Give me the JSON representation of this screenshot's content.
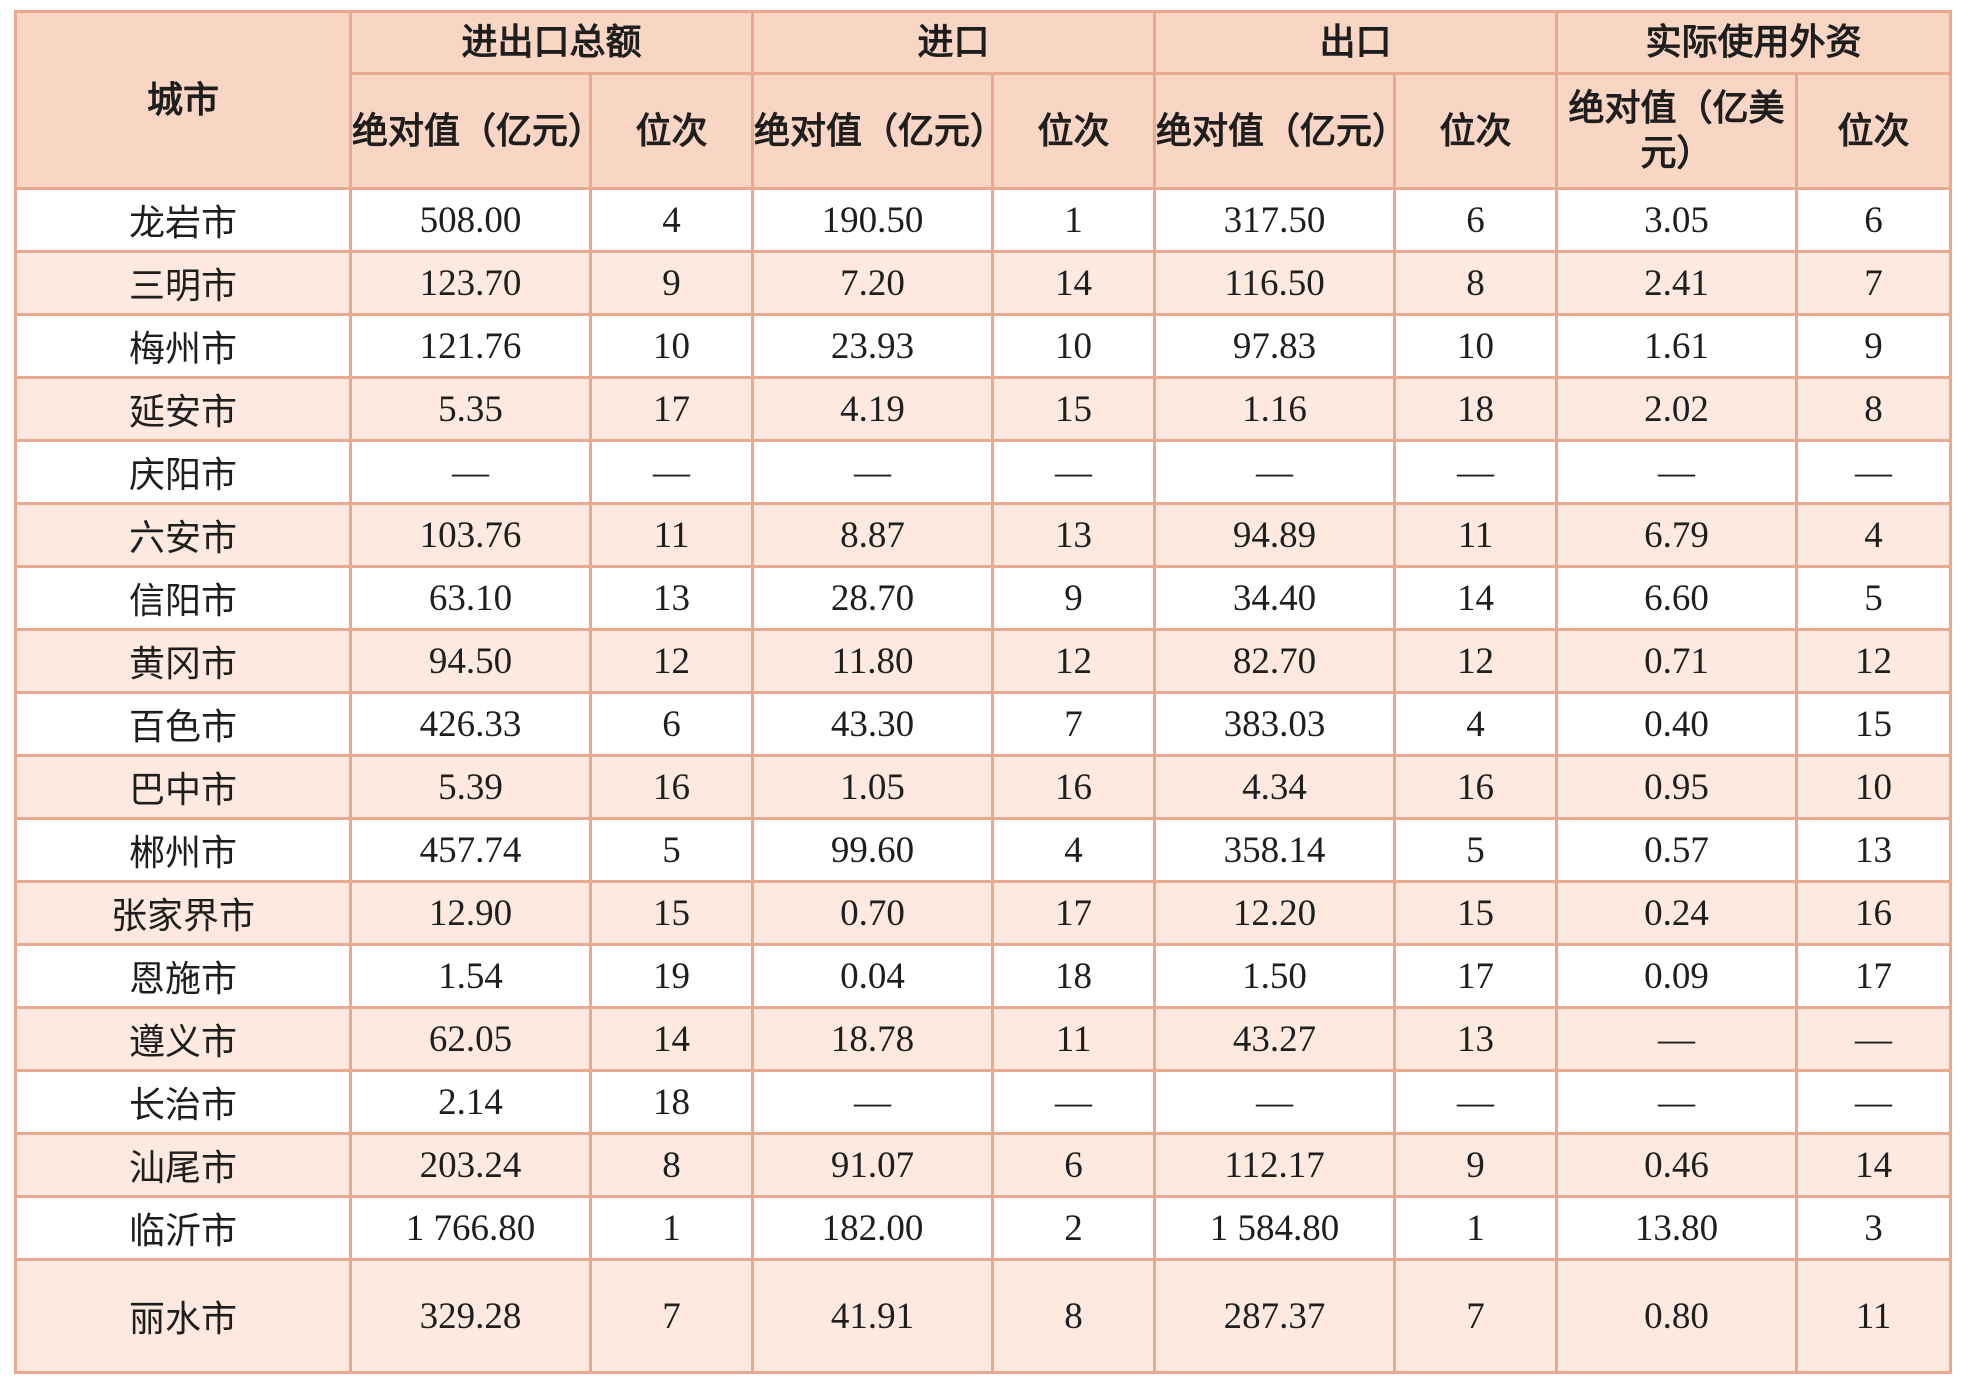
{
  "headers": {
    "city": "城市",
    "groups": [
      "进出口总额",
      "进口",
      "出口",
      "实际使用外资"
    ],
    "sub": [
      "绝对值（亿元）",
      "位次",
      "绝对值（亿元）",
      "位次",
      "绝对值（亿元）",
      "位次",
      "绝对值（亿美元）",
      "位次"
    ]
  },
  "rows": [
    [
      "龙岩市",
      "508.00",
      "4",
      "190.50",
      "1",
      "317.50",
      "6",
      "3.05",
      "6"
    ],
    [
      "三明市",
      "123.70",
      "9",
      "7.20",
      "14",
      "116.50",
      "8",
      "2.41",
      "7"
    ],
    [
      "梅州市",
      "121.76",
      "10",
      "23.93",
      "10",
      "97.83",
      "10",
      "1.61",
      "9"
    ],
    [
      "延安市",
      "5.35",
      "17",
      "4.19",
      "15",
      "1.16",
      "18",
      "2.02",
      "8"
    ],
    [
      "庆阳市",
      "—",
      "—",
      "—",
      "—",
      "—",
      "—",
      "—",
      "—"
    ],
    [
      "六安市",
      "103.76",
      "11",
      "8.87",
      "13",
      "94.89",
      "11",
      "6.79",
      "4"
    ],
    [
      "信阳市",
      "63.10",
      "13",
      "28.70",
      "9",
      "34.40",
      "14",
      "6.60",
      "5"
    ],
    [
      "黄冈市",
      "94.50",
      "12",
      "11.80",
      "12",
      "82.70",
      "12",
      "0.71",
      "12"
    ],
    [
      "百色市",
      "426.33",
      "6",
      "43.30",
      "7",
      "383.03",
      "4",
      "0.40",
      "15"
    ],
    [
      "巴中市",
      "5.39",
      "16",
      "1.05",
      "16",
      "4.34",
      "16",
      "0.95",
      "10"
    ],
    [
      "郴州市",
      "457.74",
      "5",
      "99.60",
      "4",
      "358.14",
      "5",
      "0.57",
      "13"
    ],
    [
      "张家界市",
      "12.90",
      "15",
      "0.70",
      "17",
      "12.20",
      "15",
      "0.24",
      "16"
    ],
    [
      "恩施市",
      "1.54",
      "19",
      "0.04",
      "18",
      "1.50",
      "17",
      "0.09",
      "17"
    ],
    [
      "遵义市",
      "62.05",
      "14",
      "18.78",
      "11",
      "43.27",
      "13",
      "—",
      "—"
    ],
    [
      "长治市",
      "2.14",
      "18",
      "—",
      "—",
      "—",
      "—",
      "—",
      "—"
    ],
    [
      "汕尾市",
      "203.24",
      "8",
      "91.07",
      "6",
      "112.17",
      "9",
      "0.46",
      "14"
    ],
    [
      "临沂市",
      "1 766.80",
      "1",
      "182.00",
      "2",
      "1 584.80",
      "1",
      "13.80",
      "3"
    ],
    [
      "丽水市",
      "329.28",
      "7",
      "41.91",
      "8",
      "287.37",
      "7",
      "0.80",
      "11"
    ]
  ]
}
